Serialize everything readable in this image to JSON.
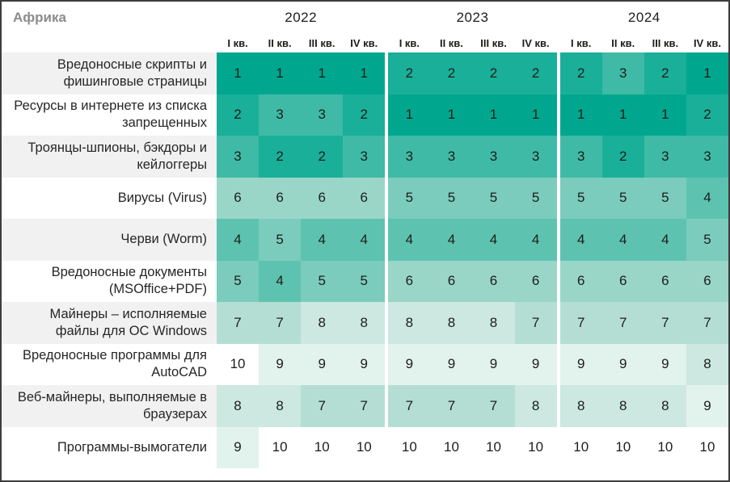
{
  "header": {
    "region": "Африка"
  },
  "chart_data": {
    "type": "heatmap",
    "title": "Африка",
    "years": [
      "2022",
      "2023",
      "2024"
    ],
    "quarters": [
      "I кв.",
      "II кв.",
      "III кв.",
      "IV кв."
    ],
    "columns": [
      "2022 I кв.",
      "2022 II кв.",
      "2022 III кв.",
      "2022 IV кв.",
      "2023 I кв.",
      "2023 II кв.",
      "2023 III кв.",
      "2023 IV кв.",
      "2024 I кв.",
      "2024 II кв.",
      "2024 III кв.",
      "2024 IV кв."
    ],
    "value_meaning": "rank 1-10, 1 = top position",
    "rows": [
      {
        "label": "Вредоносные скрипты и фишинговые страницы",
        "values": [
          1,
          1,
          1,
          1,
          2,
          2,
          2,
          2,
          2,
          3,
          2,
          1
        ]
      },
      {
        "label": "Ресурсы в интернете из списка запрещенных",
        "values": [
          2,
          3,
          3,
          2,
          1,
          1,
          1,
          1,
          1,
          1,
          1,
          2
        ]
      },
      {
        "label": "Троянцы-шпионы, бэкдоры и кейлоггеры",
        "values": [
          3,
          2,
          2,
          3,
          3,
          3,
          3,
          3,
          3,
          2,
          3,
          3
        ]
      },
      {
        "label": "Вирусы (Virus)",
        "values": [
          6,
          6,
          6,
          6,
          5,
          5,
          5,
          5,
          5,
          5,
          5,
          4
        ]
      },
      {
        "label": "Черви (Worm)",
        "values": [
          4,
          5,
          4,
          4,
          4,
          4,
          4,
          4,
          4,
          4,
          4,
          5
        ]
      },
      {
        "label": "Вредоносные документы (MSOffice+PDF)",
        "values": [
          5,
          4,
          5,
          5,
          6,
          6,
          6,
          6,
          6,
          6,
          6,
          6
        ]
      },
      {
        "label": "Майнеры – исполняемые файлы для ОС Windows",
        "values": [
          7,
          7,
          8,
          8,
          8,
          8,
          8,
          7,
          7,
          7,
          7,
          7
        ]
      },
      {
        "label": "Вредоносные программы для AutoCAD",
        "values": [
          10,
          9,
          9,
          9,
          9,
          9,
          9,
          9,
          9,
          9,
          9,
          8
        ]
      },
      {
        "label": "Веб-майнеры, выполняемые в браузерах",
        "values": [
          8,
          8,
          7,
          7,
          7,
          7,
          7,
          8,
          8,
          8,
          8,
          9
        ]
      },
      {
        "label": "Программы-вымогатели",
        "values": [
          9,
          10,
          10,
          10,
          10,
          10,
          10,
          10,
          10,
          10,
          10,
          10
        ]
      }
    ],
    "color_scale": [
      "#00a78e",
      "#1aaf99",
      "#3fbaa6",
      "#5dc3b0",
      "#7bccbc",
      "#99d6c8",
      "#b4ded3",
      "#cce8e0",
      "#e2f2ec",
      "#ffffff"
    ],
    "layout": {
      "legend_position": "none",
      "label_stripe_color": "#f1f1f1",
      "year_group_separator_color": "#ffffff"
    }
  }
}
